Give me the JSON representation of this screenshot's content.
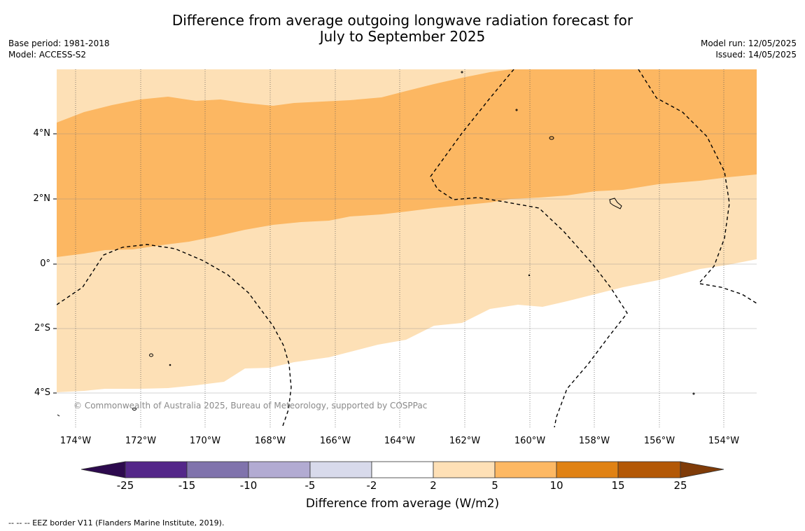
{
  "title": {
    "line1": "Difference from average outgoing longwave radiation forecast for",
    "line2": "July to September 2025"
  },
  "meta_left": {
    "base_period": "Base period: 1981-2018",
    "model": "Model: ACCESS-S2"
  },
  "meta_right": {
    "model_run": "Model run: 12/05/2025",
    "issued": "Issued: 14/05/2025"
  },
  "map": {
    "lat_range": [
      -5,
      6
    ],
    "lon_range": [
      -174.6,
      -153.0
    ],
    "lat_labels": [
      "4°N",
      "2°N",
      "0°",
      "2°S",
      "4°S"
    ],
    "lon_labels": [
      "174°W",
      "172°W",
      "170°W",
      "168°W",
      "166°W",
      "164°W",
      "162°W",
      "160°W",
      "158°W",
      "156°W",
      "154°W"
    ],
    "copyright": "© Commonwealth of Australia 2025, Bureau of Meteorology, supported by COSPPac",
    "colors": {
      "band_2_5": "#fde0b6",
      "band_5_10": "#fcb762",
      "border": "#000000"
    }
  },
  "colorbar": {
    "ticks": [
      "-25",
      "-15",
      "-10",
      "-5",
      "-2",
      "2",
      "5",
      "10",
      "15",
      "25"
    ],
    "colors": [
      "#2d0a4e",
      "#542789",
      "#8073ac",
      "#b2abd2",
      "#d8daeb",
      "#ffffff",
      "#fee0b6",
      "#fdb863",
      "#e08214",
      "#b35806",
      "#7f3b08"
    ],
    "label": "Difference from average (W/m2)"
  },
  "footnote": "--  --  -- EEZ border V11 (Flanders Marine Institute, 2019)."
}
